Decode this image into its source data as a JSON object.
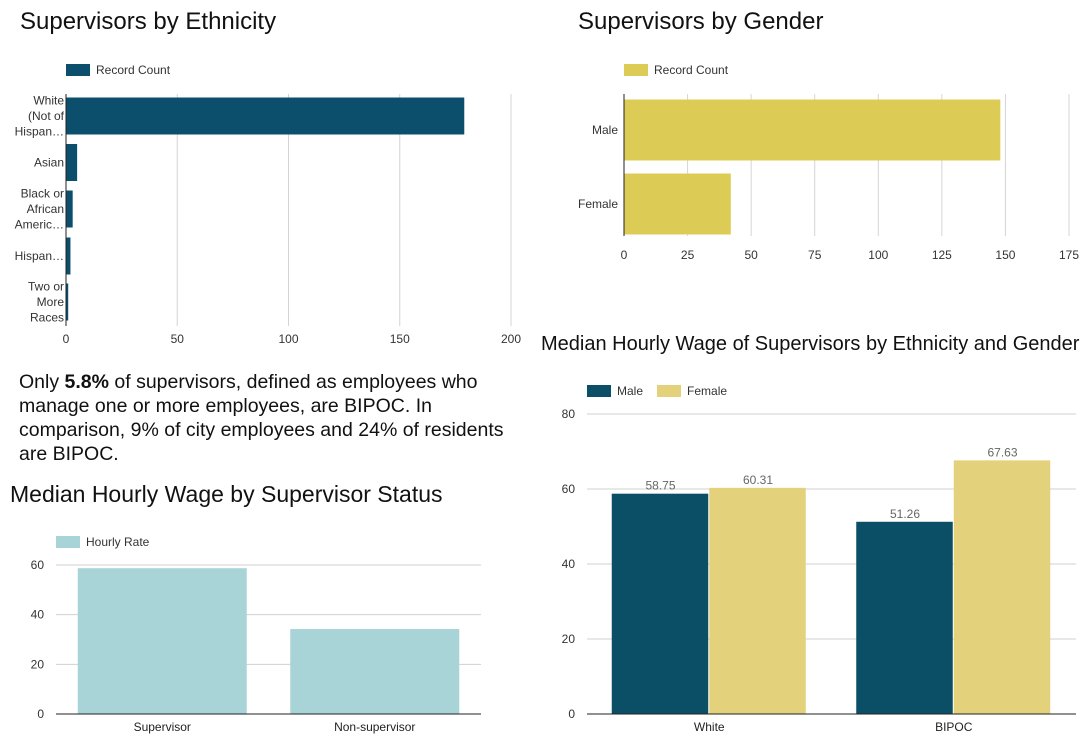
{
  "text": {
    "ethnicity_title": "Supervisors by Ethnicity",
    "gender_title": "Supervisors by Gender",
    "wage_eg_title": "Median Hourly Wage of Supervisors by Ethnicity and Gender",
    "supervisor_title": "Median Hourly Wage by Supervisor Status",
    "para_pre": "Only ",
    "para_bold": "5.8%",
    "para_post": " of supervisors, defined as employees who manage one or more employees, are BIPOC. In comparison, 9% of city employees and 24% of residents are BIPOC."
  },
  "chart_data": [
    {
      "id": "ethnicity",
      "type": "bar",
      "orientation": "horizontal",
      "title": "Supervisors by Ethnicity",
      "categories": [
        [
          "White",
          "(Not of",
          "Hispan…"
        ],
        [
          "Asian"
        ],
        [
          "Black or",
          "African",
          "Americ…"
        ],
        [
          "Hispan…"
        ],
        [
          "Two or",
          "More",
          "Races"
        ]
      ],
      "series": [
        {
          "name": "Record Count",
          "values": [
            179,
            5,
            3,
            2,
            1
          ],
          "color": "#0b4f6c"
        }
      ],
      "xlim": [
        0,
        200
      ],
      "ticks": [
        0,
        50,
        100,
        150,
        200
      ],
      "grid": true,
      "legend": "top-left"
    },
    {
      "id": "gender",
      "type": "bar",
      "orientation": "horizontal",
      "title": "Supervisors by Gender",
      "categories": [
        [
          "Male"
        ],
        [
          "Female"
        ]
      ],
      "series": [
        {
          "name": "Record Count",
          "values": [
            148,
            42
          ],
          "color": "#dccc55"
        }
      ],
      "xlim": [
        0,
        175
      ],
      "ticks": [
        0,
        25,
        50,
        75,
        100,
        125,
        150,
        175
      ],
      "grid": true,
      "legend": "top-left"
    },
    {
      "id": "wage_eg",
      "type": "bar",
      "title": "Median Hourly Wage of Supervisors by Ethnicity and Gender",
      "categories": [
        "White",
        "BIPOC"
      ],
      "series": [
        {
          "name": "Male",
          "values": [
            58.75,
            51.26
          ],
          "labels": [
            "58.75",
            "51.26"
          ],
          "color": "#0b4f66"
        },
        {
          "name": "Female",
          "values": [
            60.31,
            67.63
          ],
          "labels": [
            "60.31",
            "67.63"
          ],
          "color": "#e3d17c"
        }
      ],
      "ylim": [
        0,
        80
      ],
      "ticks": [
        0,
        20,
        40,
        60,
        80
      ],
      "grid": true,
      "legend": "top-left"
    },
    {
      "id": "supervisor",
      "type": "bar",
      "title": "Median Hourly Wage by Supervisor Status",
      "categories": [
        "Supervisor",
        "Non-supervisor"
      ],
      "series": [
        {
          "name": "Hourly Rate",
          "values": [
            58.7,
            34.2
          ],
          "color": "#a8d3d7"
        }
      ],
      "ylim": [
        0,
        60
      ],
      "ticks": [
        0,
        20,
        40,
        60
      ],
      "grid": true,
      "legend": "top-left"
    }
  ]
}
